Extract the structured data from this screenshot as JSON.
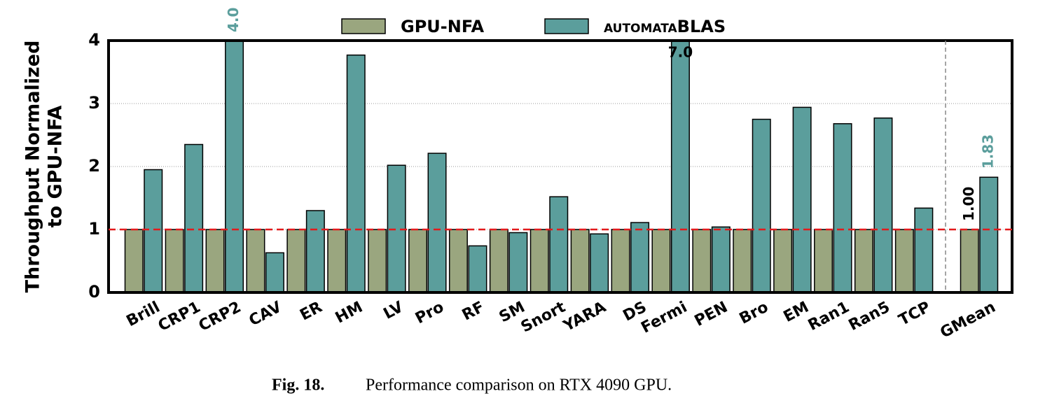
{
  "chart_data": {
    "type": "bar",
    "ylabel": [
      "Throughput Normalized",
      "to GPU-NFA"
    ],
    "categories": [
      "Brill",
      "CRP1",
      "CRP2",
      "CAV",
      "ER",
      "HM",
      "LV",
      "Pro",
      "RF",
      "SM",
      "Snort",
      "YARA",
      "DS",
      "Fermi",
      "PEN",
      "Bro",
      "EM",
      "Ran1",
      "Ran5",
      "TCP",
      "GMean"
    ],
    "series": [
      {
        "name": "GPU-NFA",
        "color": "#9aa67f",
        "values": [
          1,
          1,
          1,
          1,
          1,
          1,
          1,
          1,
          1,
          1,
          1,
          1,
          1,
          1,
          1,
          1,
          1,
          1,
          1,
          1,
          1
        ],
        "value_labels": [
          null,
          null,
          null,
          null,
          null,
          null,
          null,
          null,
          null,
          null,
          null,
          null,
          null,
          null,
          null,
          null,
          null,
          null,
          null,
          null,
          "1.00"
        ]
      },
      {
        "name": "automataBLAS",
        "color": "#5b9e9c",
        "values": [
          1.95,
          2.35,
          4.0,
          0.63,
          1.3,
          3.77,
          2.02,
          2.21,
          0.74,
          0.95,
          1.52,
          0.93,
          1.11,
          7.0,
          1.04,
          2.75,
          2.94,
          2.68,
          2.77,
          1.34,
          1.83
        ],
        "value_labels": [
          null,
          null,
          "4.0",
          null,
          null,
          null,
          null,
          null,
          null,
          null,
          null,
          null,
          null,
          "7.0",
          null,
          null,
          null,
          null,
          null,
          null,
          "1.83"
        ]
      }
    ],
    "ylim": [
      0,
      4
    ],
    "yticks": [
      0,
      1,
      2,
      3,
      4
    ],
    "grid": true,
    "reference_line": 1,
    "legend": "top"
  },
  "caption": {
    "label": "Fig. 18.",
    "text": "Performance comparison on RTX 4090 GPU."
  }
}
